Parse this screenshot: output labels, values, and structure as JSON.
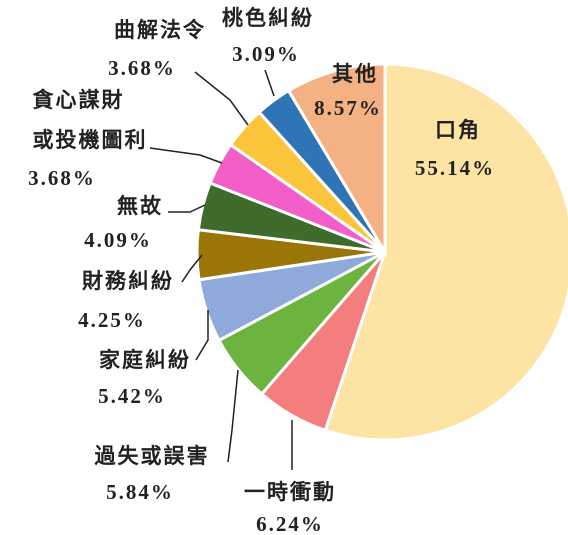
{
  "chart_data": {
    "type": "pie",
    "categories": [
      "口角",
      "一時衝動",
      "過失或誤害",
      "家庭糾紛",
      "財務糾紛",
      "無故",
      "貪心謀財\n或投機圖利",
      "曲解法令",
      "桃色糾紛",
      "其他"
    ],
    "values": [
      55.14,
      6.24,
      5.84,
      5.42,
      4.25,
      4.09,
      3.68,
      3.68,
      3.09,
      8.57
    ],
    "value_labels": [
      "55.14%",
      "6.24%",
      "5.84%",
      "5.42%",
      "4.25%",
      "4.09%",
      "3.68%",
      "3.68%",
      "3.09%",
      "8.57%"
    ],
    "colors": [
      "#fde4a4",
      "#f47d7d",
      "#6cb33f",
      "#8eaadb",
      "#9a7608",
      "#3f6b2b",
      "#f35ec9",
      "#fbc53b",
      "#2f74b5",
      "#f4b184"
    ]
  }
}
